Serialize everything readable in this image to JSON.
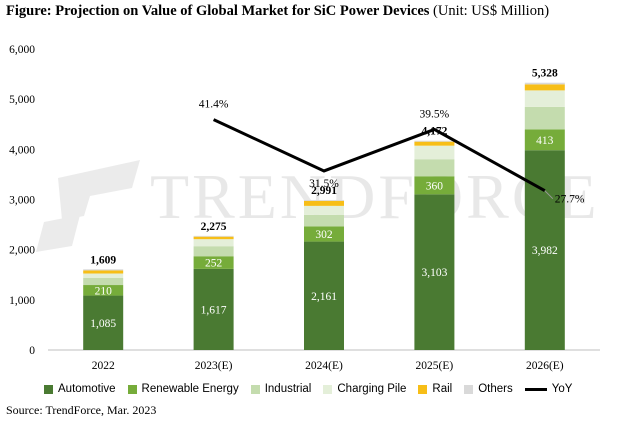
{
  "title": {
    "bold": "Figure: Projection on Value of Global Market for SiC Power Devices",
    "unit": "(Unit: US$ Million)"
  },
  "source": "Source: TrendForce, Mar. 2023",
  "watermark": "TrendForce",
  "chart_data": {
    "type": "bar",
    "stacked": true,
    "categories": [
      "2022",
      "2023(E)",
      "2024(E)",
      "2025(E)",
      "2026(E)"
    ],
    "ylim": [
      0,
      6000
    ],
    "yticks": [
      "0",
      "1,000",
      "2,000",
      "3,000",
      "4,000",
      "5,000",
      "6,000"
    ],
    "series": [
      {
        "name": "Automotive",
        "color": "#4a7a32",
        "values": [
          1085,
          1617,
          2161,
          3103,
          3982
        ],
        "labels": [
          "1,085",
          "1,617",
          "2,161",
          "3,103",
          "3,982"
        ],
        "label_color": "#ffffff"
      },
      {
        "name": "Renewable Energy",
        "color": "#76ac3a",
        "values": [
          210,
          252,
          302,
          360,
          413
        ],
        "labels": [
          "210",
          "252",
          "302",
          "360",
          "413"
        ],
        "label_color": "#ffffff"
      },
      {
        "name": "Industrial",
        "color": "#c4dcae",
        "values": [
          140,
          200,
          230,
          340,
          450
        ],
        "labels": [],
        "label_color": "#000000"
      },
      {
        "name": "Charging Pile",
        "color": "#e4efd9",
        "values": [
          90,
          140,
          180,
          270,
          330
        ],
        "labels": [],
        "label_color": "#000000"
      },
      {
        "name": "Rail",
        "color": "#f7be17",
        "values": [
          60,
          50,
          100,
          80,
          120
        ],
        "labels": [],
        "label_color": "#000000"
      },
      {
        "name": "Others",
        "color": "#d9d9d9",
        "values": [
          24,
          16,
          18,
          19,
          33
        ],
        "labels": [],
        "label_color": "#000000"
      }
    ],
    "totals": [
      1609,
      2275,
      2991,
      4172,
      5328
    ],
    "total_labels": [
      "1,609",
      "2,275",
      "2,991",
      "4,172",
      "5,328"
    ],
    "yoy": {
      "name": "YoY",
      "color": "#000000",
      "points": [
        {
          "category": "2023(E)",
          "value": 41.4,
          "label": "41.4%"
        },
        {
          "category": "2024(E)",
          "value": 31.5,
          "label": "31.5%"
        },
        {
          "category": "2025(E)",
          "value": 39.5,
          "label": "39.5%"
        },
        {
          "category": "2026(E)",
          "value": 27.7,
          "label": "27.7%"
        }
      ],
      "secondary_ylim": [
        -3,
        55
      ]
    }
  }
}
